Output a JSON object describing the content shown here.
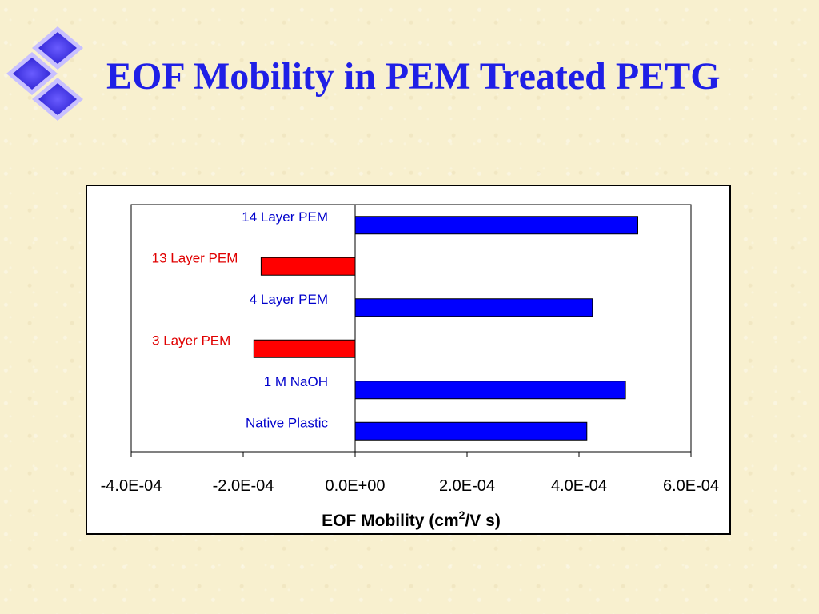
{
  "slide": {
    "title": "EOF Mobility in PEM Treated PETG",
    "logo_icon": "blue-diamonds-icon"
  },
  "colors": {
    "title": "#1f1fe6",
    "positive_bar": "#0000ff",
    "negative_bar": "#ff0000",
    "positive_label": "#0000cc",
    "negative_label": "#e00000"
  },
  "chart_data": {
    "type": "bar",
    "orientation": "horizontal",
    "title": "",
    "xlabel": "EOF Mobility (cm",
    "xlabel_superscript": "2",
    "xlabel_suffix": "/V s)",
    "ylabel": "",
    "xlim": [
      -0.0004,
      0.0006
    ],
    "xticks": [
      -0.0004,
      -0.0002,
      0.0,
      0.0002,
      0.0004,
      0.0006
    ],
    "xtick_labels": [
      "-4.0E-04",
      "-2.0E-04",
      "0.0E+00",
      "2.0E-04",
      "4.0E-04",
      "6.0E-04"
    ],
    "grid": false,
    "legend": "none",
    "categories": [
      "14 Layer PEM",
      "13 Layer PEM",
      "4 Layer PEM",
      "3 Layer PEM",
      "1 M NaOH",
      "Native Plastic"
    ],
    "values": [
      0.000505,
      -0.000168,
      0.000424,
      -0.000181,
      0.000483,
      0.000414
    ]
  }
}
